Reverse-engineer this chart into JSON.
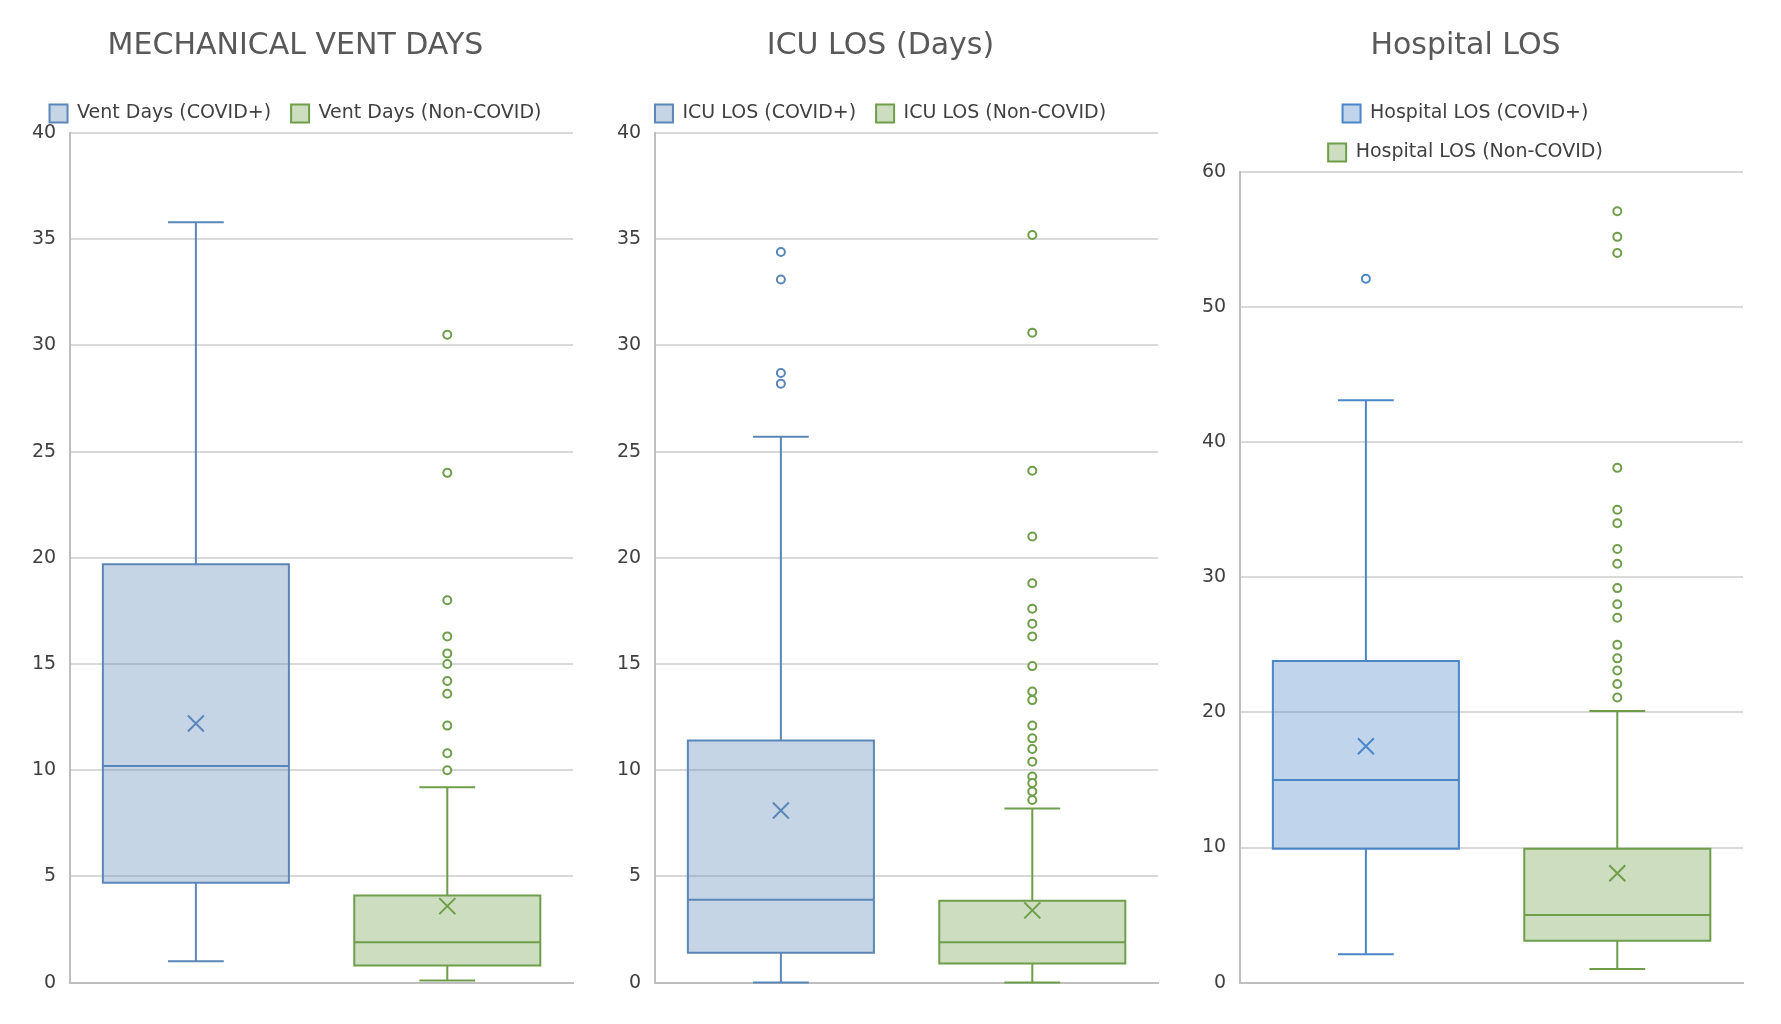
{
  "chart_data": [
    {
      "type": "box",
      "title": "MECHANICAL VENT DAYS",
      "categories": [
        null
      ],
      "ylim": [
        0,
        40
      ],
      "yticks": [
        0,
        5,
        10,
        15,
        20,
        25,
        30,
        35,
        40
      ],
      "grid": "y",
      "legend": "top",
      "series": [
        {
          "name": "Vent Days (COVID+)",
          "color": "#5b86b8",
          "boxes": [
            {
              "low": 1,
              "q1": 4.7,
              "median": 10.2,
              "q3": 19.7,
              "high": 35.8,
              "mean": 12.2
            }
          ]
        },
        {
          "name": "Vent Days (Non-COVID)",
          "color": "#6f9e4a",
          "boxes": [
            {
              "low": 0.1,
              "q1": 0.8,
              "median": 1.9,
              "q3": 4.1,
              "high": 9.2,
              "mean": 3.6,
              "outliers": [
                30.5,
                24,
                18,
                16.3,
                15.5,
                15,
                14.2,
                13.6,
                12.1,
                10.8,
                10
              ]
            }
          ]
        }
      ]
    },
    {
      "type": "box",
      "title": "ICU LOS (Days)",
      "categories": [
        null
      ],
      "ylim": [
        0,
        40
      ],
      "yticks": [
        0,
        5,
        10,
        15,
        20,
        25,
        30,
        35,
        40
      ],
      "grid": "y",
      "legend": "top",
      "series": [
        {
          "name": "ICU LOS (COVID+)",
          "color": "#5b86b8",
          "boxes": [
            {
              "low": 0,
              "q1": 1.4,
              "median": 3.9,
              "q3": 11.4,
              "high": 25.7,
              "mean": 8.1,
              "outliers": [
                34.4,
                33.1,
                28.7,
                28.2
              ]
            }
          ]
        },
        {
          "name": "ICU LOS (Non-COVID)",
          "color": "#6f9e4a",
          "boxes": [
            {
              "low": 0,
              "q1": 0.9,
              "median": 1.9,
              "q3": 3.85,
              "high": 8.2,
              "mean": 3.4,
              "outliers": [
                35.2,
                30.6,
                24.1,
                21,
                18.8,
                17.6,
                16.9,
                16.3,
                14.9,
                13.7,
                13.3,
                12.1,
                11.5,
                11,
                10.4,
                9.7,
                9.4,
                9,
                8.6
              ]
            }
          ]
        }
      ]
    },
    {
      "type": "box",
      "title": "Hospital LOS",
      "categories": [
        null
      ],
      "ylim": [
        0,
        60
      ],
      "yticks": [
        0,
        10,
        20,
        30,
        40,
        50,
        60
      ],
      "grid": "y",
      "legend": "top",
      "series": [
        {
          "name": "Hospital LOS (COVID+)",
          "color": "#4a86c8",
          "boxes": [
            {
              "low": 2.1,
              "q1": 9.9,
              "median": 15,
              "q3": 23.8,
              "high": 43.1,
              "mean": 17.5,
              "outliers": [
                52.1
              ]
            }
          ]
        },
        {
          "name": "Hospital LOS (Non-COVID)",
          "color": "#6f9e4a",
          "boxes": [
            {
              "low": 1,
              "q1": 3.1,
              "median": 5,
              "q3": 9.9,
              "high": 20.1,
              "mean": 8.1,
              "outliers": [
                57.1,
                55.2,
                54,
                38.1,
                35,
                34,
                32.1,
                31,
                29.2,
                28,
                27,
                25,
                24,
                23.1,
                22.1,
                21.1
              ]
            }
          ]
        }
      ]
    }
  ]
}
